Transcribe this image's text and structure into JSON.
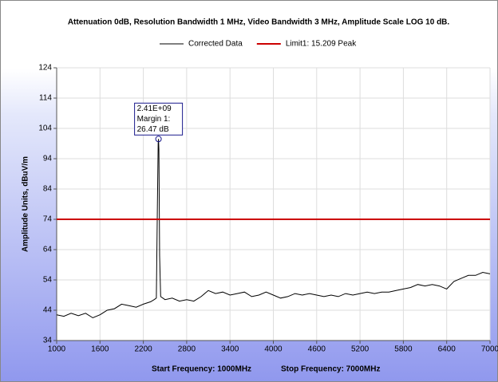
{
  "chart_data": {
    "type": "line",
    "title": "Attenuation 0dB, Resolution Bandwidth 1 MHz, Video Bandwidth 3 MHz, Amplitude Scale LOG 10 dB.",
    "ylabel": "Amplitude Units, dBuV/m",
    "xlabels": [
      "Start Frequency: 1000MHz",
      "Stop Frequency: 7000MHz"
    ],
    "xlim": [
      1000,
      7000
    ],
    "ylim": [
      34,
      124
    ],
    "xticks": [
      1000,
      1600,
      2200,
      2800,
      3400,
      4000,
      4600,
      5200,
      5800,
      6400,
      7000
    ],
    "yticks": [
      34,
      44,
      54,
      64,
      74,
      84,
      94,
      104,
      114,
      124
    ],
    "grid": true,
    "legend": "top",
    "series": [
      {
        "name": "Corrected Data",
        "color": "#000000",
        "x": [
          1000,
          1100,
          1200,
          1300,
          1400,
          1500,
          1600,
          1700,
          1800,
          1900,
          2000,
          2100,
          2200,
          2300,
          2350,
          2380,
          2395,
          2405,
          2410,
          2415,
          2425,
          2440,
          2500,
          2600,
          2700,
          2800,
          2900,
          3000,
          3100,
          3200,
          3300,
          3400,
          3500,
          3600,
          3700,
          3800,
          3900,
          4000,
          4100,
          4200,
          4300,
          4400,
          4500,
          4600,
          4700,
          4800,
          4900,
          5000,
          5100,
          5200,
          5300,
          5400,
          5500,
          5600,
          5700,
          5800,
          5900,
          6000,
          6100,
          6200,
          6300,
          6400,
          6500,
          6600,
          6700,
          6800,
          6900,
          7000
        ],
        "values": [
          42.5,
          42,
          43,
          42.2,
          43,
          41.5,
          42.5,
          44,
          44.5,
          46,
          45.5,
          45,
          46,
          46.8,
          47.5,
          48,
          78,
          99,
          100.5,
          97,
          62,
          48.5,
          47.5,
          48,
          47,
          47.5,
          47,
          48.5,
          50.5,
          49.5,
          50,
          49,
          49.5,
          50,
          48.5,
          49,
          50,
          49,
          48,
          48.5,
          49.5,
          49,
          49.5,
          49,
          48.5,
          49,
          48.5,
          49.5,
          49,
          49.5,
          50,
          49.5,
          50,
          50,
          50.5,
          51,
          51.5,
          52.5,
          52,
          52.5,
          52,
          51,
          53.5,
          54.5,
          55.5,
          55.5,
          56.5,
          56
        ]
      },
      {
        "name": "Limit1: 15.209 Peak",
        "color": "#cc0000",
        "x": [
          1000,
          7000
        ],
        "values": [
          74,
          74
        ]
      }
    ],
    "annotation": {
      "point": 18,
      "lines": [
        "2.41E+09",
        "Margin 1:",
        "26.47 dB"
      ],
      "color": "#1a1a8c"
    }
  }
}
